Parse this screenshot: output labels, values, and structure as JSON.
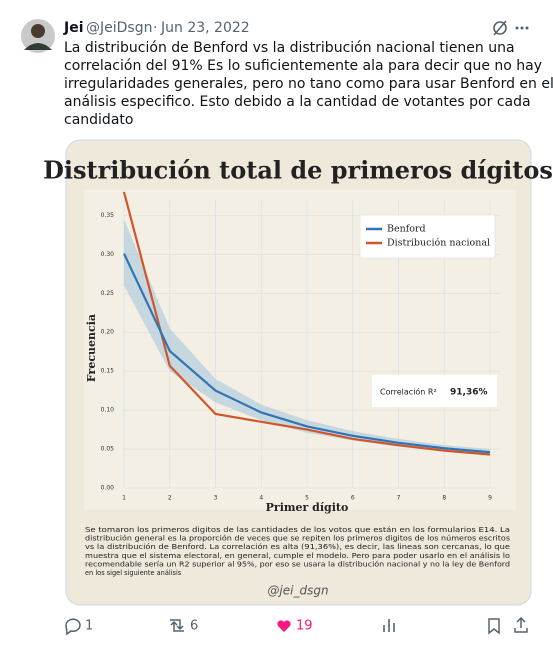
{
  "tweet": {
    "name": "Jei",
    "handle": "@JeiDsgn",
    "date": "Jun 23, 2022",
    "text_lines": [
      "La distribución de Benford vs la distribución nacional tienen una",
      "correlación del 91% Es lo suficientemente ala para decir que no hay",
      "irregularidades generales, pero no tano como para usar Benford en el",
      "análisis especifico. Esto debido a la cantidad de votantes por cada",
      "candidato"
    ],
    "replies": "1",
    "retweets": "6",
    "likes": "19"
  },
  "chart_data": {
    "type": "line",
    "title": "Distribución total de primeros dígitos",
    "x_label": "Primer dígito",
    "y_label": "Frecuencia",
    "x": [
      1,
      2,
      3,
      4,
      5,
      6,
      7,
      8,
      9
    ],
    "series": [
      {
        "name": "Benford",
        "color": "#2e75b6",
        "values": [
          0.301,
          0.176,
          0.125,
          0.097,
          0.079,
          0.067,
          0.058,
          0.051,
          0.046
        ]
      },
      {
        "name": "Distribución nacional",
        "color": "#d0562a",
        "values": [
          0.38,
          0.157,
          0.095,
          0.085,
          0.075,
          0.063,
          0.055,
          0.048,
          0.043
        ]
      }
    ],
    "band": {
      "color": "#a9c6de",
      "lower": [
        0.26,
        0.15,
        0.11,
        0.087,
        0.071,
        0.061,
        0.053,
        0.047,
        0.042
      ],
      "upper": [
        0.345,
        0.205,
        0.14,
        0.107,
        0.087,
        0.073,
        0.063,
        0.055,
        0.05
      ]
    },
    "xlim": [
      1,
      9
    ],
    "ylim": [
      0,
      0.38
    ],
    "xticks": [
      1,
      2,
      3,
      4,
      5,
      6,
      7,
      8,
      9
    ],
    "yticks": [
      {
        "value": 0,
        "label": "0.00"
      },
      {
        "value": 0.05,
        "label": "0.05"
      },
      {
        "value": 0.1,
        "label": "0.10"
      },
      {
        "value": 0.15,
        "label": "0.15"
      },
      {
        "value": 0.2,
        "label": "0.20"
      },
      {
        "value": 0.25,
        "label": "0.25"
      },
      {
        "value": 0.3,
        "label": "0.30"
      },
      {
        "value": 0.35,
        "label": "0.35"
      }
    ],
    "grid": true,
    "legend": "upper right",
    "annotation": {
      "label": "Correlación R²",
      "value": "91,36%"
    },
    "caption_lines": [
      "Se tomaron los primeros digitos de las cantidades de los votos que están en los formularios E14. La",
      "distribución general es la proporción de veces que se repiten los primeros digitos de los números escritos",
      "vs la distribución de Benford. La correlación es alta (91,36%), es decir, las lineas son cercanas, lo que",
      "muestra que el sistema electoral, en general, cumple el modelo. Pero para poder usarlo en el análisis lo",
      "recomendable sería un R2 superior al 95%, por eso se usara la distribución nacional y no la ley de Benford",
      "en los sigel siguiente análisis"
    ],
    "signature": "@jei_dsgn"
  }
}
